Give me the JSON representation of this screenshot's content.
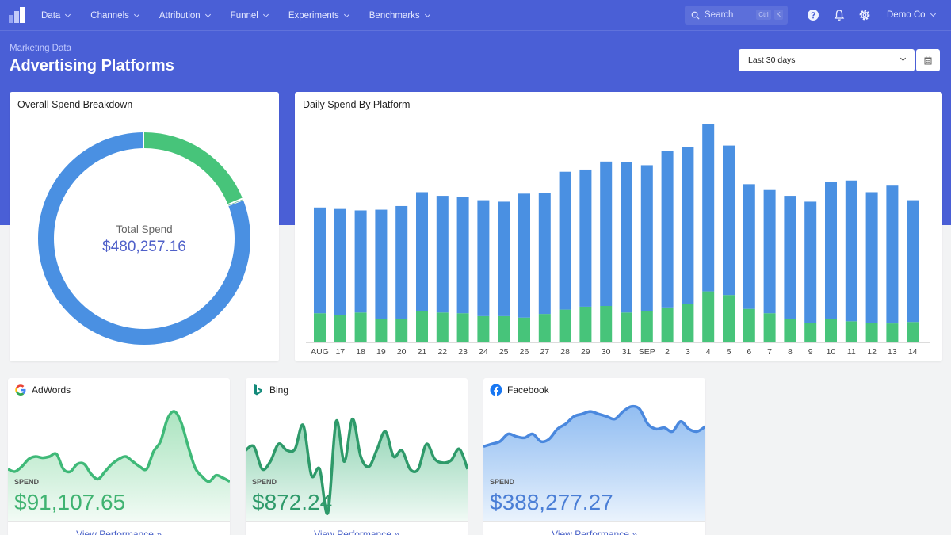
{
  "app": {
    "nav": [
      {
        "label": "Data"
      },
      {
        "label": "Channels"
      },
      {
        "label": "Attribution"
      },
      {
        "label": "Funnel"
      },
      {
        "label": "Experiments"
      },
      {
        "label": "Benchmarks"
      }
    ],
    "search": {
      "placeholder": "Search",
      "shortcut": [
        "Ctrl",
        "K"
      ]
    },
    "account": "Demo Co"
  },
  "page": {
    "breadcrumb": "Marketing Data",
    "title": "Advertising Platforms",
    "date_range": "Last 30 days"
  },
  "colors": {
    "blue": "#4a90e2",
    "green": "#47c47a",
    "brand": "#4a5fd6"
  },
  "donut": {
    "title": "Overall Spend Breakdown",
    "center_label": "Total Spend",
    "center_value": "$480,257.16"
  },
  "bars": {
    "title": "Daily Spend By Platform"
  },
  "chart_data": [
    {
      "type": "pie",
      "title": "Overall Spend Breakdown",
      "series": [
        {
          "name": "Facebook",
          "value": 388277.27,
          "color": "#4a90e2"
        },
        {
          "name": "AdWords",
          "value": 91107.65,
          "color": "#47c47a"
        },
        {
          "name": "Bing",
          "value": 872.24,
          "color": "#2e9a6a"
        }
      ]
    },
    {
      "type": "bar",
      "title": "Daily Spend By Platform",
      "stacked": true,
      "grid": false,
      "categories": [
        "AUG",
        "17",
        "18",
        "19",
        "20",
        "21",
        "22",
        "23",
        "24",
        "25",
        "26",
        "27",
        "28",
        "29",
        "30",
        "31",
        "SEP",
        "2",
        "3",
        "4",
        "5",
        "6",
        "7",
        "8",
        "9",
        "10",
        "11",
        "12",
        "13",
        "14"
      ],
      "ylim": [
        0,
        300
      ],
      "series": [
        {
          "name": "Green",
          "color": "#47c47a",
          "values": [
            40,
            37,
            41,
            32,
            32,
            43,
            41,
            40,
            36,
            36,
            34,
            39,
            45,
            49,
            50,
            41,
            43,
            48,
            53,
            70,
            65,
            46,
            40,
            32,
            27,
            32,
            29,
            27,
            26,
            28
          ]
        },
        {
          "name": "Blue",
          "color": "#4a90e2",
          "values": [
            145,
            146,
            140,
            150,
            155,
            163,
            160,
            159,
            159,
            157,
            170,
            166,
            189,
            188,
            198,
            206,
            200,
            215,
            215,
            230,
            205,
            171,
            169,
            169,
            166,
            188,
            193,
            179,
            189,
            167
          ]
        }
      ]
    },
    {
      "type": "area",
      "title": "AdWords",
      "ylim": [
        0,
        100
      ],
      "values": [
        40,
        38,
        42,
        48,
        50,
        49,
        50,
        52,
        40,
        38,
        44,
        44,
        36,
        32,
        38,
        44,
        48,
        50,
        46,
        42,
        40,
        54,
        62,
        80,
        86,
        77,
        58,
        41,
        34,
        30,
        35,
        33,
        30
      ]
    },
    {
      "type": "area",
      "title": "Bing",
      "ylim": [
        0,
        100
      ],
      "values": [
        55,
        58,
        40,
        46,
        60,
        55,
        56,
        75,
        35,
        40,
        5,
        78,
        46,
        80,
        50,
        42,
        56,
        70,
        50,
        55,
        40,
        40,
        60,
        48,
        45,
        47,
        56,
        40
      ]
    },
    {
      "type": "area",
      "title": "Facebook",
      "ylim": [
        0,
        100
      ],
      "values": [
        58,
        60,
        62,
        68,
        66,
        65,
        68,
        62,
        64,
        72,
        76,
        82,
        84,
        86,
        84,
        82,
        80,
        86,
        90,
        88,
        76,
        72,
        73,
        70,
        78,
        72,
        70,
        74
      ]
    }
  ],
  "mini_cards": [
    {
      "name": "AdWords",
      "spend_label": "SPEND",
      "spend_value": "$91,107.65",
      "link": "View Performance »"
    },
    {
      "name": "Bing",
      "spend_label": "SPEND",
      "spend_value": "$872.24",
      "link": "View Performance »"
    },
    {
      "name": "Facebook",
      "spend_label": "SPEND",
      "spend_value": "$388,277.27",
      "link": "View Performance »"
    }
  ]
}
